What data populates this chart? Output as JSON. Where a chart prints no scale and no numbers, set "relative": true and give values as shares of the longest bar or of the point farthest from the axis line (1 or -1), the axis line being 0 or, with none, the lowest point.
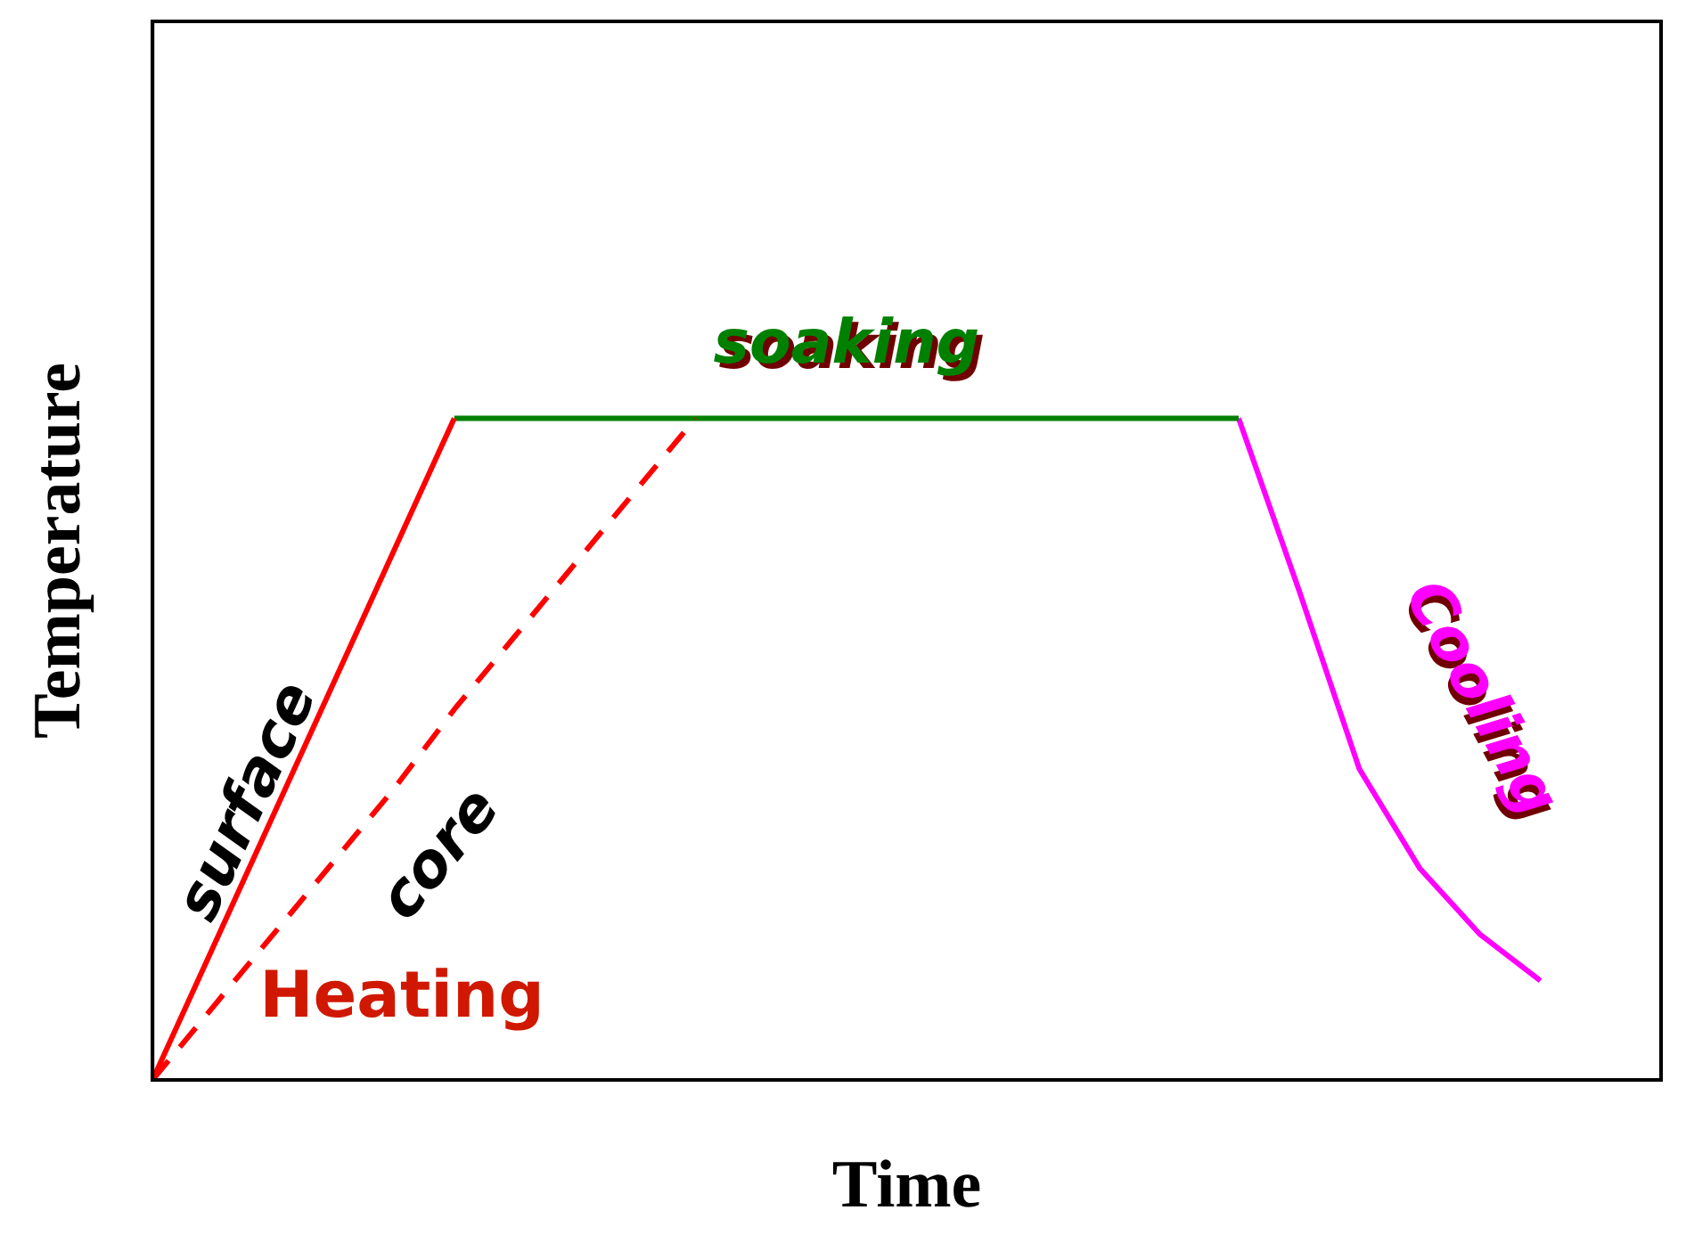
{
  "chart_data": {
    "type": "line",
    "relative": true,
    "xlabel": "Time",
    "ylabel": "Temperature",
    "legend": false,
    "grid": false,
    "marker": "none",
    "categories": [
      null,
      null,
      null,
      null,
      null,
      null,
      null,
      null,
      null,
      null,
      null,
      null,
      null,
      null,
      null,
      null,
      null,
      null,
      null,
      null,
      null,
      null,
      null,
      null,
      null,
      null
    ],
    "series": [
      {
        "name": "surface",
        "color": "#ff0000",
        "values": [
          0,
          0.2,
          0.4,
          0.6,
          0.8,
          1,
          null,
          null,
          null,
          null,
          null,
          null,
          null,
          null,
          null,
          null,
          null,
          null,
          null,
          null,
          null,
          null,
          null,
          null,
          null,
          null
        ],
        "line_style": "solid"
      },
      {
        "name": "core",
        "color": "#ff0000",
        "values": [
          0,
          0.11,
          0.22,
          0.33,
          0.44,
          0.56,
          0.67,
          0.78,
          0.89,
          1,
          null,
          null,
          null,
          null,
          null,
          null,
          null,
          null,
          null,
          null,
          null,
          null,
          null,
          null,
          null,
          null
        ],
        "line_style": "dashed"
      },
      {
        "name": "soaking",
        "color": "#008000",
        "values": [
          null,
          null,
          null,
          null,
          null,
          1,
          1,
          1,
          1,
          1,
          1,
          1,
          1,
          1,
          1,
          1,
          1,
          1,
          1,
          null,
          null,
          null,
          null,
          null,
          null,
          null
        ],
        "line_style": "solid"
      },
      {
        "name": "Cooling",
        "color": "#ff00ff",
        "values": [
          null,
          null,
          null,
          null,
          null,
          null,
          null,
          null,
          null,
          null,
          null,
          null,
          null,
          null,
          null,
          null,
          null,
          null,
          1,
          0.74,
          0.47,
          0.32,
          0.22,
          0.15,
          null,
          null
        ],
        "line_style": "solid"
      }
    ],
    "annotations": [
      "Heating"
    ]
  }
}
